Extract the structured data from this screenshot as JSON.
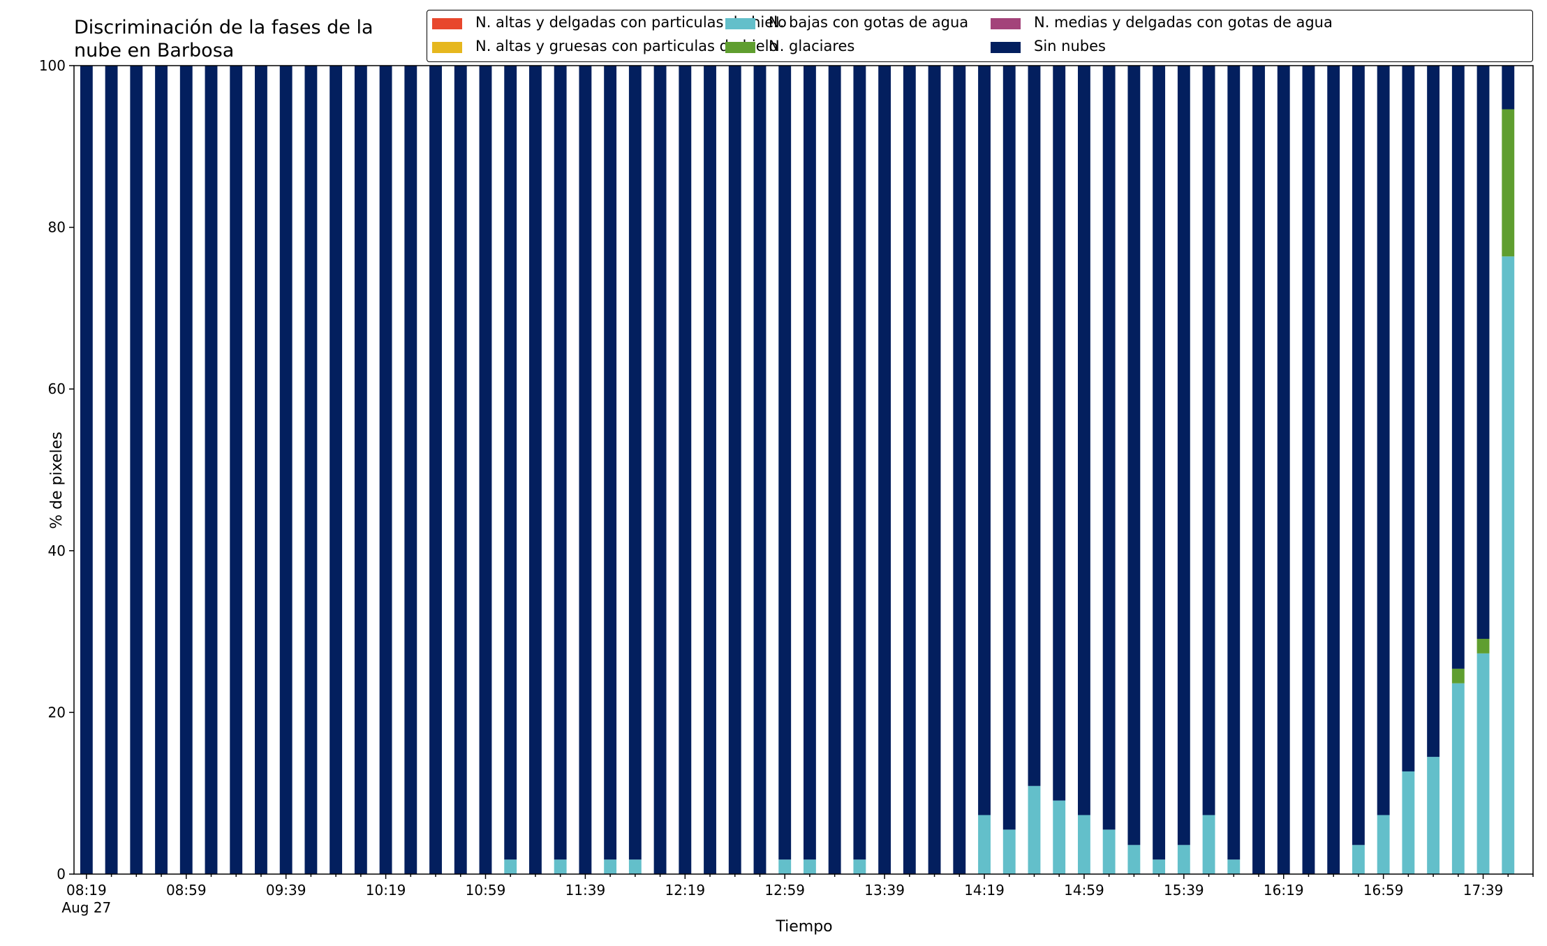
{
  "chart_data": {
    "type": "bar",
    "stacked": true,
    "title_lines": [
      "Discriminación de la fases de la",
      "nube en Barbosa"
    ],
    "xlabel": "Tiempo",
    "ylabel": "% de pixeles",
    "ylim": [
      0,
      100
    ],
    "yticks": [
      0,
      20,
      40,
      60,
      80,
      100
    ],
    "xtick_labels": [
      "08:19",
      "08:59",
      "09:39",
      "10:19",
      "10:59",
      "11:39",
      "12:19",
      "12:59",
      "13:39",
      "14:19",
      "14:59",
      "15:39",
      "16:19",
      "16:59",
      "17:39"
    ],
    "xtick_sublabel": "Aug 27",
    "categories": [
      "08:19",
      "08:29",
      "08:39",
      "08:49",
      "08:59",
      "09:09",
      "09:19",
      "09:29",
      "09:39",
      "09:49",
      "09:59",
      "10:09",
      "10:19",
      "10:29",
      "10:39",
      "10:49",
      "10:59",
      "11:09",
      "11:19",
      "11:29",
      "11:39",
      "11:49",
      "11:59",
      "12:09",
      "12:19",
      "12:29",
      "12:39",
      "12:49",
      "12:59",
      "13:09",
      "13:19",
      "13:29",
      "13:39",
      "13:49",
      "13:59",
      "14:09",
      "14:19",
      "14:29",
      "14:39",
      "14:49",
      "14:59",
      "15:09",
      "15:19",
      "15:29",
      "15:39",
      "15:49",
      "15:59",
      "16:09",
      "16:19",
      "16:29",
      "16:39",
      "16:49",
      "16:59",
      "17:09",
      "17:19",
      "17:29",
      "17:39",
      "17:49"
    ],
    "grid": false,
    "legend_position": "top-right",
    "legend_columns": 3,
    "series": [
      {
        "name": "N. altas y delgadas con particulas de hielo",
        "color": "#e8472d",
        "values": [
          0,
          0,
          0,
          0,
          0,
          0,
          0,
          0,
          0,
          0,
          0,
          0,
          0,
          0,
          0,
          0,
          0,
          0,
          0,
          0,
          0,
          0,
          0,
          0,
          0,
          0,
          0,
          0,
          0,
          0,
          0,
          0,
          0,
          0,
          0,
          0,
          0,
          0,
          0,
          0,
          0,
          0,
          0,
          0,
          0,
          0,
          0,
          0,
          0,
          0,
          0,
          0,
          0,
          0,
          0,
          0,
          0,
          0
        ]
      },
      {
        "name": "N. altas y gruesas con particulas de hielo",
        "color": "#e6b71e",
        "values": [
          0,
          0,
          0,
          0,
          0,
          0,
          0,
          0,
          0,
          0,
          0,
          0,
          0,
          0,
          0,
          0,
          0,
          0,
          0,
          0,
          0,
          0,
          0,
          0,
          0,
          0,
          0,
          0,
          0,
          0,
          0,
          0,
          0,
          0,
          0,
          0,
          0,
          0,
          0,
          0,
          0,
          0,
          0,
          0,
          0,
          0,
          0,
          0,
          0,
          0,
          0,
          0,
          0,
          0,
          0,
          0,
          0,
          0
        ]
      },
      {
        "name": "N. bajas con gotas de agua",
        "color": "#63bfca",
        "values": [
          0,
          0,
          0,
          0,
          0,
          0,
          0,
          0,
          0,
          0,
          0,
          0,
          0,
          0,
          0,
          0,
          0,
          1.8,
          0,
          1.8,
          0,
          1.8,
          1.8,
          0,
          0,
          0,
          0,
          0,
          1.8,
          1.8,
          0,
          1.8,
          0,
          0,
          0,
          0,
          7.3,
          5.5,
          10.9,
          9.1,
          7.3,
          5.5,
          3.6,
          1.8,
          3.6,
          7.3,
          1.8,
          0,
          0,
          0,
          0,
          3.6,
          7.3,
          12.7,
          14.5,
          23.6,
          27.3,
          76.4
        ]
      },
      {
        "name": "N. medias y delgadas con gotas de agua",
        "color": "#a3437a",
        "values": [
          0,
          0,
          0,
          0,
          0,
          0,
          0,
          0,
          0,
          0,
          0,
          0,
          0,
          0,
          0,
          0,
          0,
          0,
          0,
          0,
          0,
          0,
          0,
          0,
          0,
          0,
          0,
          0,
          0,
          0,
          0,
          0,
          0,
          0,
          0,
          0,
          0,
          0,
          0,
          0,
          0,
          0,
          0,
          0,
          0,
          0,
          0,
          0,
          0,
          0,
          0,
          0,
          0,
          0,
          0,
          0,
          0,
          0
        ]
      },
      {
        "name": "N. glaciares",
        "color": "#5f9e2f",
        "values": [
          0,
          0,
          0,
          0,
          0,
          0,
          0,
          0,
          0,
          0,
          0,
          0,
          0,
          0,
          0,
          0,
          0,
          0,
          0,
          0,
          0,
          0,
          0,
          0,
          0,
          0,
          0,
          0,
          0,
          0,
          0,
          0,
          0,
          0,
          0,
          0,
          0,
          0,
          0,
          0,
          0,
          0,
          0,
          0,
          0,
          0,
          0,
          0,
          0,
          0,
          0,
          0,
          0,
          0,
          0,
          1.8,
          1.8,
          18.2
        ]
      },
      {
        "name": "Sin nubes",
        "color": "#031f5e",
        "values": [
          100,
          100,
          100,
          100,
          100,
          100,
          100,
          100,
          100,
          100,
          100,
          100,
          100,
          100,
          100,
          100,
          100,
          98.2,
          100,
          98.2,
          100,
          98.2,
          98.2,
          100,
          100,
          100,
          100,
          100,
          98.2,
          98.2,
          100,
          98.2,
          100,
          100,
          100,
          100,
          92.7,
          94.5,
          89.1,
          90.9,
          92.7,
          94.5,
          96.4,
          98.2,
          96.4,
          92.7,
          98.2,
          100,
          100,
          100,
          100,
          96.4,
          92.7,
          87.3,
          85.5,
          74.6,
          70.9,
          5.4
        ]
      }
    ]
  }
}
